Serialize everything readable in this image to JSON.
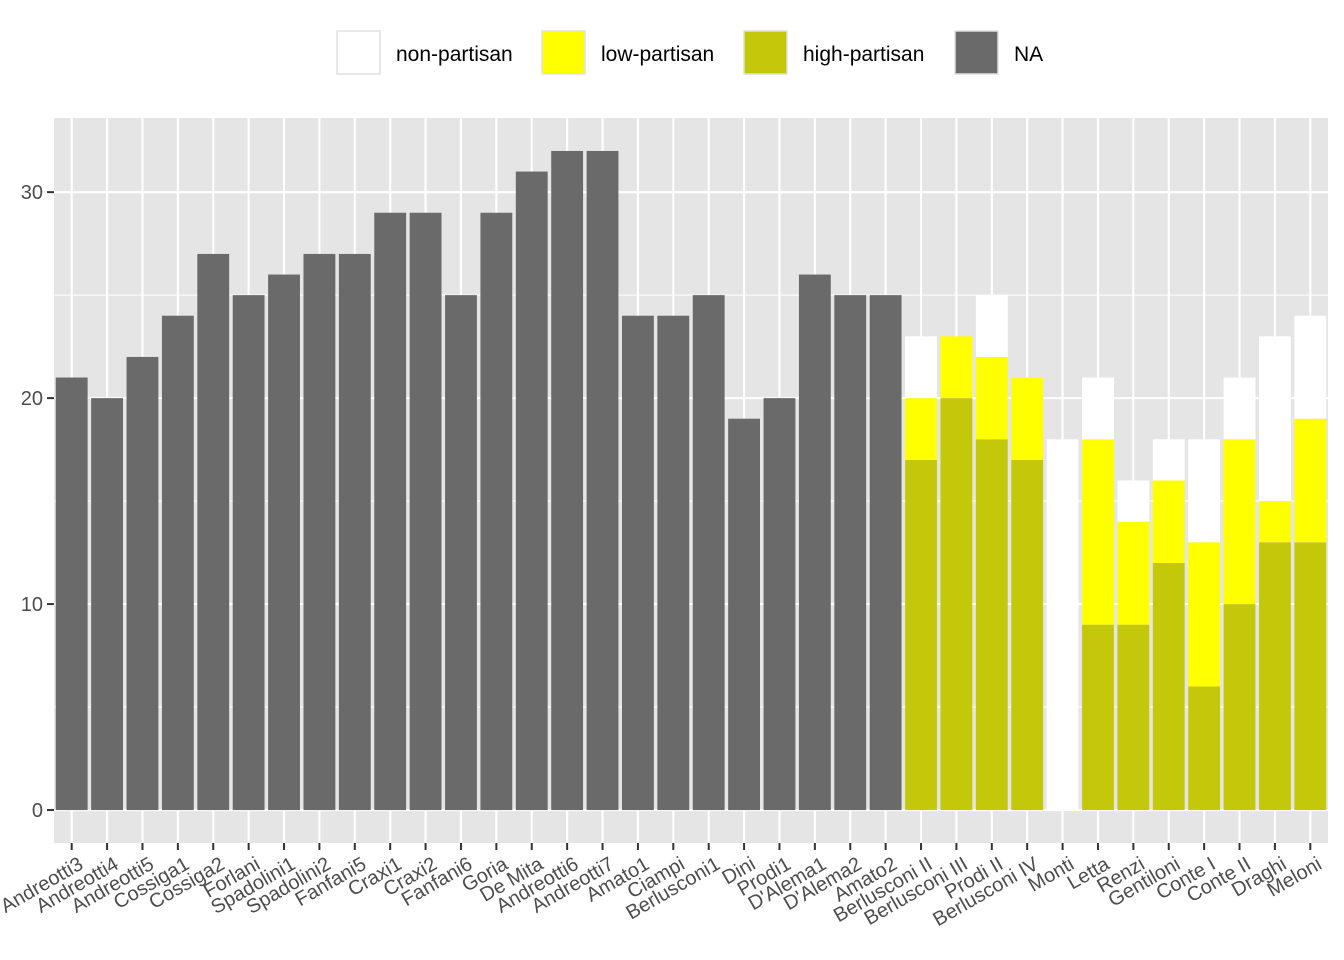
{
  "chart_data": {
    "type": "bar",
    "stacked": true,
    "categories": [
      "Andreotti3",
      "Andreotti4",
      "Andreotti5",
      "Cossiga1",
      "Cossiga2",
      "Forlani",
      "Spadolini1",
      "Spadolini2",
      "Fanfani5",
      "Craxi1",
      "Craxi2",
      "Fanfani6",
      "Goria",
      "De Mita",
      "Andreotti6",
      "Andreotti7",
      "Amato1",
      "Ciampi",
      "Berlusconi1",
      "Dini",
      "Prodi1",
      "D'Alema1",
      "D'Alema2",
      "Amato2",
      "Berlusconi II",
      "Berlusconi III",
      "Prodi II",
      "Berlusconi IV",
      "Monti",
      "Letta",
      "Renzi",
      "Gentiloni",
      "Conte I",
      "Conte II",
      "Draghi",
      "Meloni"
    ],
    "series": [
      {
        "name": "high-partisan",
        "color": "#c4c80a",
        "values": [
          0,
          0,
          0,
          0,
          0,
          0,
          0,
          0,
          0,
          0,
          0,
          0,
          0,
          0,
          0,
          0,
          0,
          0,
          0,
          0,
          0,
          0,
          0,
          0,
          17,
          20,
          18,
          17,
          0,
          9,
          9,
          12,
          6,
          10,
          13,
          13
        ]
      },
      {
        "name": "low-partisan",
        "color": "#ffff00",
        "values": [
          0,
          0,
          0,
          0,
          0,
          0,
          0,
          0,
          0,
          0,
          0,
          0,
          0,
          0,
          0,
          0,
          0,
          0,
          0,
          0,
          0,
          0,
          0,
          0,
          3,
          3,
          4,
          4,
          0,
          9,
          5,
          4,
          7,
          8,
          2,
          6
        ]
      },
      {
        "name": "non-partisan",
        "color": "#ffffff",
        "values": [
          0,
          0,
          0,
          0,
          0,
          0,
          0,
          0,
          0,
          0,
          0,
          0,
          0,
          0,
          0,
          0,
          0,
          0,
          0,
          0,
          0,
          0,
          0,
          0,
          3,
          0,
          3,
          0,
          18,
          3,
          2,
          2,
          5,
          3,
          8,
          5
        ]
      },
      {
        "name": "NA",
        "color": "#6a6a6a",
        "values": [
          21,
          20,
          22,
          24,
          27,
          25,
          26,
          27,
          27,
          29,
          29,
          25,
          29,
          31,
          32,
          32,
          24,
          24,
          25,
          19,
          20,
          26,
          25,
          25,
          0,
          0,
          0,
          0,
          0,
          0,
          0,
          0,
          0,
          0,
          0,
          0
        ]
      }
    ],
    "legend_order": [
      "non-partisan",
      "low-partisan",
      "high-partisan",
      "NA"
    ],
    "yticks": [
      0,
      10,
      20,
      30
    ],
    "ylim": [
      -1.6,
      33.6
    ],
    "xlabel": "",
    "ylabel": "",
    "grid": true,
    "legend_position": "top",
    "panel_color": "#e5e5e5",
    "grid_color": "#ffffff"
  }
}
